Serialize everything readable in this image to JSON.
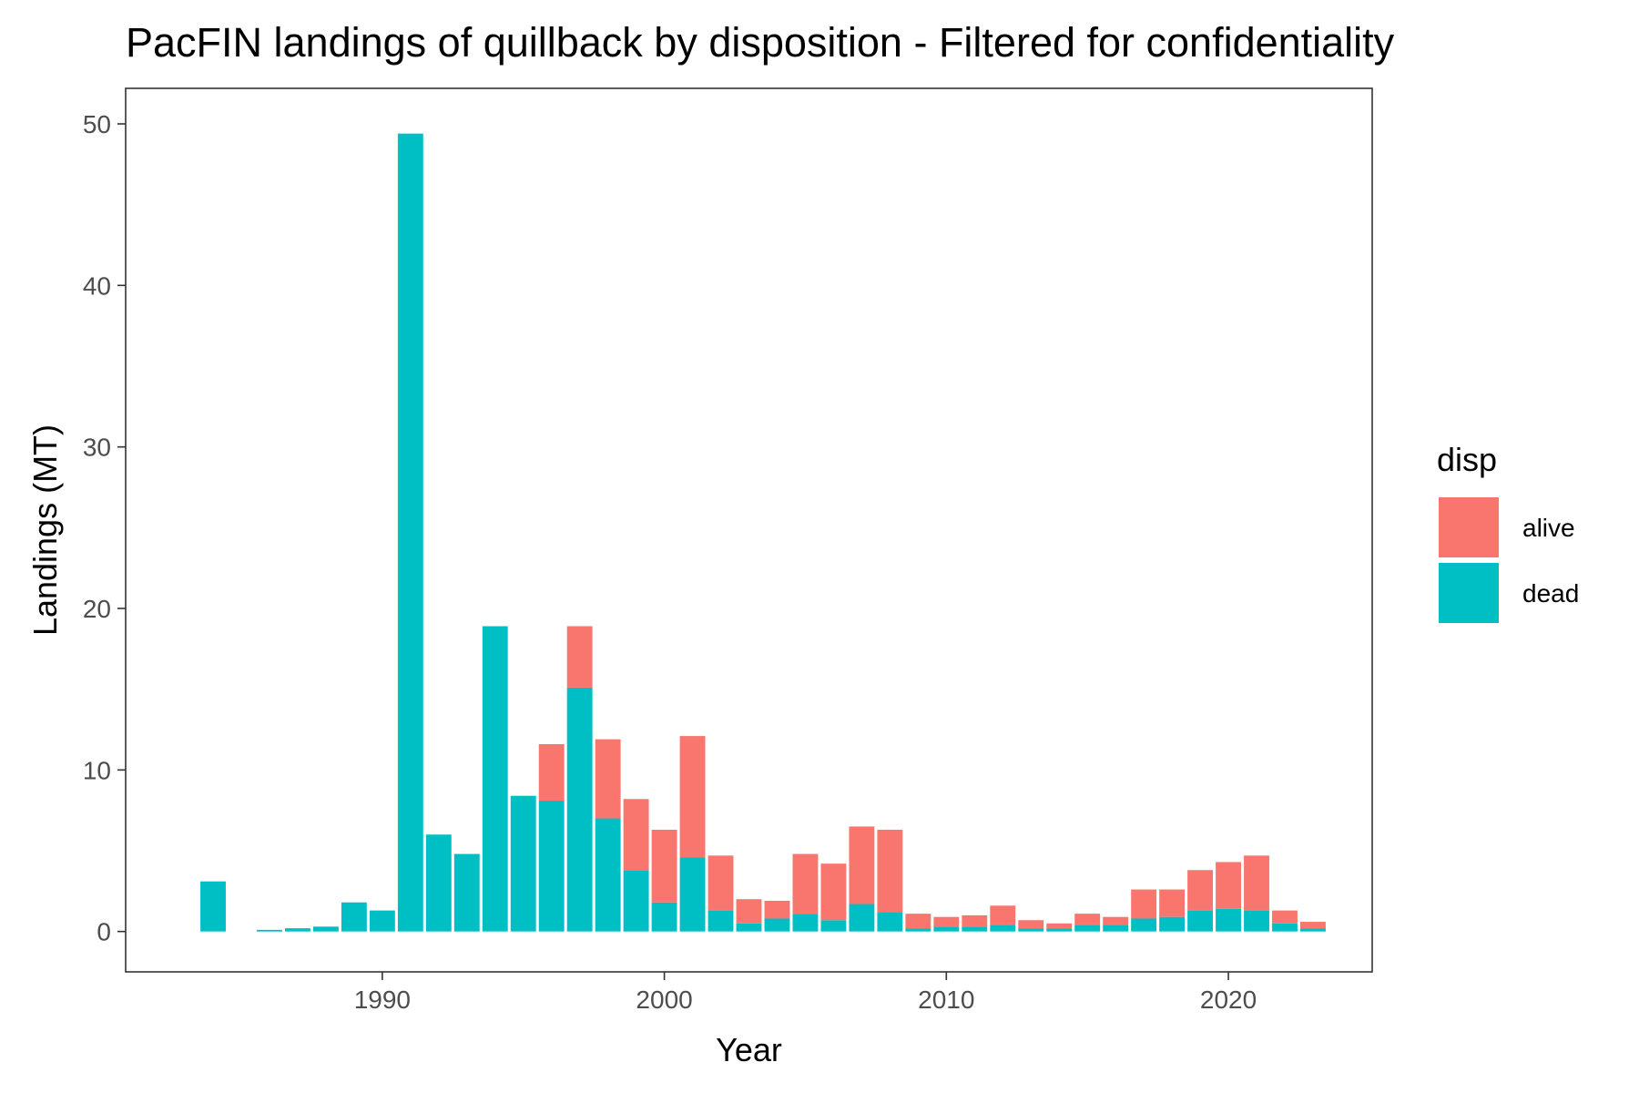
{
  "chart_data": {
    "type": "bar",
    "stacked": true,
    "title": "PacFIN landings of quillback by disposition - Filtered for confidentiality",
    "xlabel": "Year",
    "ylabel": "Landings (MT)",
    "xlim": [
      1980.9,
      2025.1
    ],
    "ylim": [
      -2.5,
      52.2
    ],
    "x_ticks": [
      1990,
      2000,
      2010,
      2020
    ],
    "y_ticks": [
      0,
      10,
      20,
      30,
      40,
      50
    ],
    "grid": false,
    "legend": {
      "title": "disp",
      "position": "right",
      "entries": [
        {
          "label": "alive",
          "color": "#F8766D"
        },
        {
          "label": "dead",
          "color": "#00BFC4"
        }
      ]
    },
    "x": [
      1984,
      1986,
      1987,
      1988,
      1989,
      1990,
      1991,
      1992,
      1993,
      1994,
      1995,
      1996,
      1997,
      1998,
      1999,
      2000,
      2001,
      2002,
      2003,
      2004,
      2005,
      2006,
      2007,
      2008,
      2009,
      2010,
      2011,
      2012,
      2013,
      2014,
      2015,
      2016,
      2017,
      2018,
      2019,
      2020,
      2021,
      2022,
      2023
    ],
    "series": [
      {
        "name": "dead",
        "color": "#00BFC4",
        "values": [
          3.1,
          0.1,
          0.2,
          0.3,
          1.8,
          1.3,
          49.4,
          6.0,
          4.8,
          18.9,
          8.4,
          8.1,
          15.1,
          7.0,
          3.8,
          1.8,
          4.6,
          1.3,
          0.5,
          0.8,
          1.1,
          0.7,
          1.7,
          1.2,
          0.2,
          0.3,
          0.3,
          0.4,
          0.2,
          0.2,
          0.4,
          0.4,
          0.8,
          0.9,
          1.3,
          1.4,
          1.3,
          0.5,
          0.2
        ]
      },
      {
        "name": "alive",
        "color": "#F8766D",
        "values": [
          0,
          0,
          0,
          0,
          0,
          0,
          0,
          0,
          0,
          0,
          0,
          3.5,
          3.8,
          4.9,
          4.4,
          4.5,
          7.5,
          3.4,
          1.5,
          1.1,
          3.7,
          3.5,
          4.8,
          5.1,
          0.9,
          0.6,
          0.7,
          1.2,
          0.5,
          0.3,
          0.7,
          0.5,
          1.8,
          1.7,
          2.5,
          2.9,
          3.4,
          0.8,
          0.4
        ]
      }
    ]
  }
}
